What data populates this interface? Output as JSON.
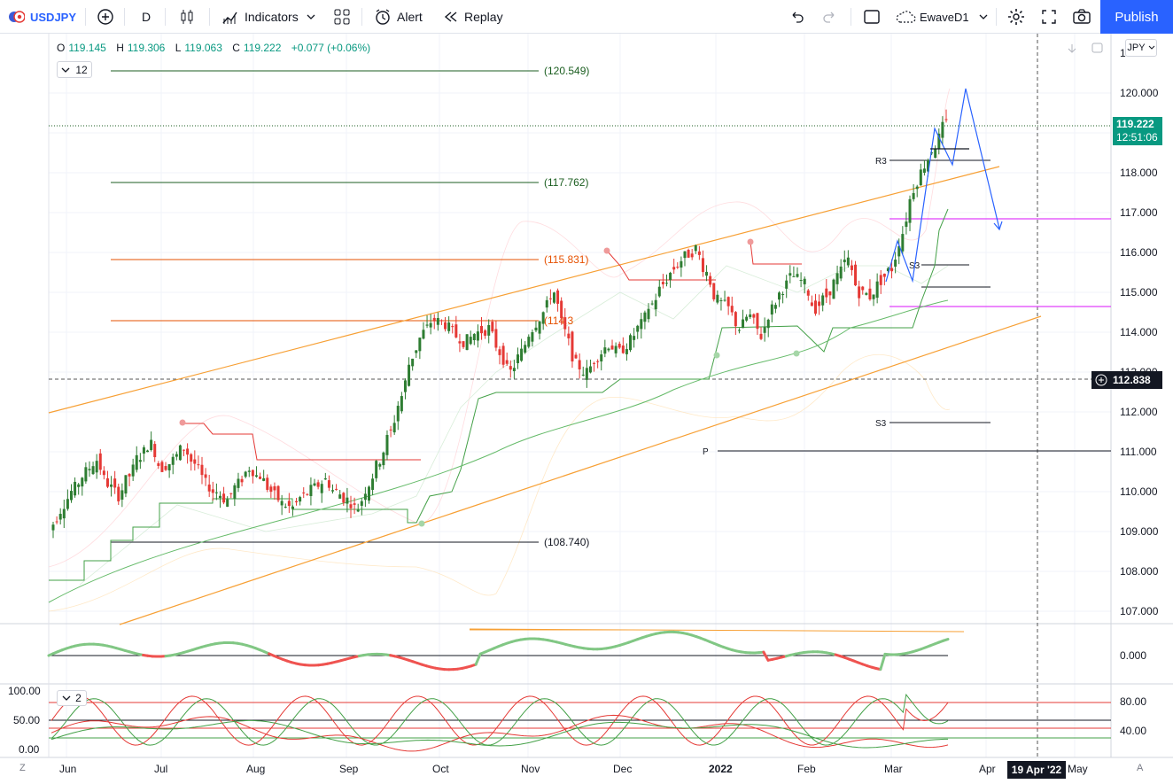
{
  "toolbar": {
    "symbol": "USDJPY",
    "interval": "D",
    "indicators_label": "Indicators",
    "alert_label": "Alert",
    "replay_label": "Replay",
    "layout_name": "EwaveD1",
    "publish_label": "Publish"
  },
  "legend": {
    "open_key": "O",
    "open": "119.145",
    "high_key": "H",
    "high": "119.306",
    "low_key": "L",
    "low": "119.063",
    "close_key": "C",
    "close": "119.222",
    "change": "+0.077 (+0.06%)",
    "collapse_count": "12"
  },
  "currency": "JPY",
  "price_axis": {
    "ticks": [
      "120.000",
      "119.000",
      "118.000",
      "117.000",
      "116.000",
      "115.000",
      "114.000",
      "113.000",
      "112.000",
      "111.000",
      "110.000",
      "109.000",
      "108.000",
      "107.000"
    ],
    "top_partial": "1",
    "last_price": "119.222",
    "countdown": "12:51:06",
    "crosshair_price": "112.838"
  },
  "osc1_axis": {
    "ticks": [
      "0.000"
    ]
  },
  "osc2_axis": {
    "ticks": [
      "80.00",
      "40.00"
    ],
    "left_ticks": [
      "100.00",
      "50.00",
      "0.00"
    ],
    "collapse_count": "2"
  },
  "time_axis": {
    "labels": [
      "Jun",
      "Jul",
      "Aug",
      "Sep",
      "Oct",
      "Nov",
      "Dec",
      "2022",
      "Feb",
      "Mar",
      "Apr",
      "May"
    ],
    "crosshair_date": "19 Apr '22",
    "left_btn": "Z",
    "right_btn": "A"
  },
  "annotations": {
    "levels": [
      "(120.549)",
      "(117.762)",
      "(115.831)",
      "(114.3",
      "(108.740)"
    ],
    "pivots": [
      "R3",
      "S3",
      "S3",
      "P"
    ]
  },
  "colors": {
    "up": "#089981",
    "down": "#f23645",
    "green_candle": "#2e7d32",
    "red_candle": "#e53935",
    "orange": "#f7a035",
    "magenta": "#e040fb",
    "blue": "#2962ff"
  },
  "chart_data": {
    "type": "candlestick",
    "symbol": "USDJPY",
    "interval": "D",
    "ylim": [
      106.6,
      121.4
    ],
    "x": [
      "Jun",
      "Jul",
      "Aug",
      "Sep",
      "Oct",
      "Nov",
      "Dec",
      "2022",
      "Feb",
      "Mar",
      "Apr",
      "May"
    ],
    "close_series": [
      109.2,
      109.7,
      110.1,
      110.5,
      110.8,
      110.2,
      109.9,
      110.4,
      110.9,
      111.2,
      110.6,
      110.8,
      111.1,
      110.7,
      110.2,
      110.0,
      109.8,
      110.2,
      110.6,
      110.4,
      110.0,
      109.7,
      109.6,
      109.9,
      110.1,
      110.3,
      110.0,
      109.8,
      109.6,
      110.2,
      110.8,
      111.5,
      112.4,
      113.4,
      114.0,
      114.3,
      114.2,
      113.9,
      113.8,
      114.0,
      114.1,
      113.5,
      113.0,
      113.5,
      114.1,
      114.5,
      115.0,
      114.0,
      113.2,
      113.0,
      113.4,
      113.7,
      113.5,
      113.8,
      114.2,
      114.7,
      115.2,
      115.6,
      115.9,
      116.1,
      115.5,
      114.8,
      114.6,
      114.1,
      114.4,
      113.9,
      114.6,
      115.1,
      115.4,
      115.2,
      114.6,
      114.9,
      115.4,
      115.8,
      115.0,
      114.9,
      115.3,
      115.6,
      116.5,
      117.6,
      118.2,
      118.7,
      119.222
    ],
    "levels": [
      120.549,
      117.762,
      115.831,
      114.3,
      108.74
    ],
    "pivot_P": 111.0,
    "pivot_R3": 118.3,
    "pivot_S3": [
      115.7,
      111.75
    ],
    "oscillator_range": [
      0,
      100
    ],
    "oscillator_guides": [
      80,
      50,
      40
    ]
  }
}
